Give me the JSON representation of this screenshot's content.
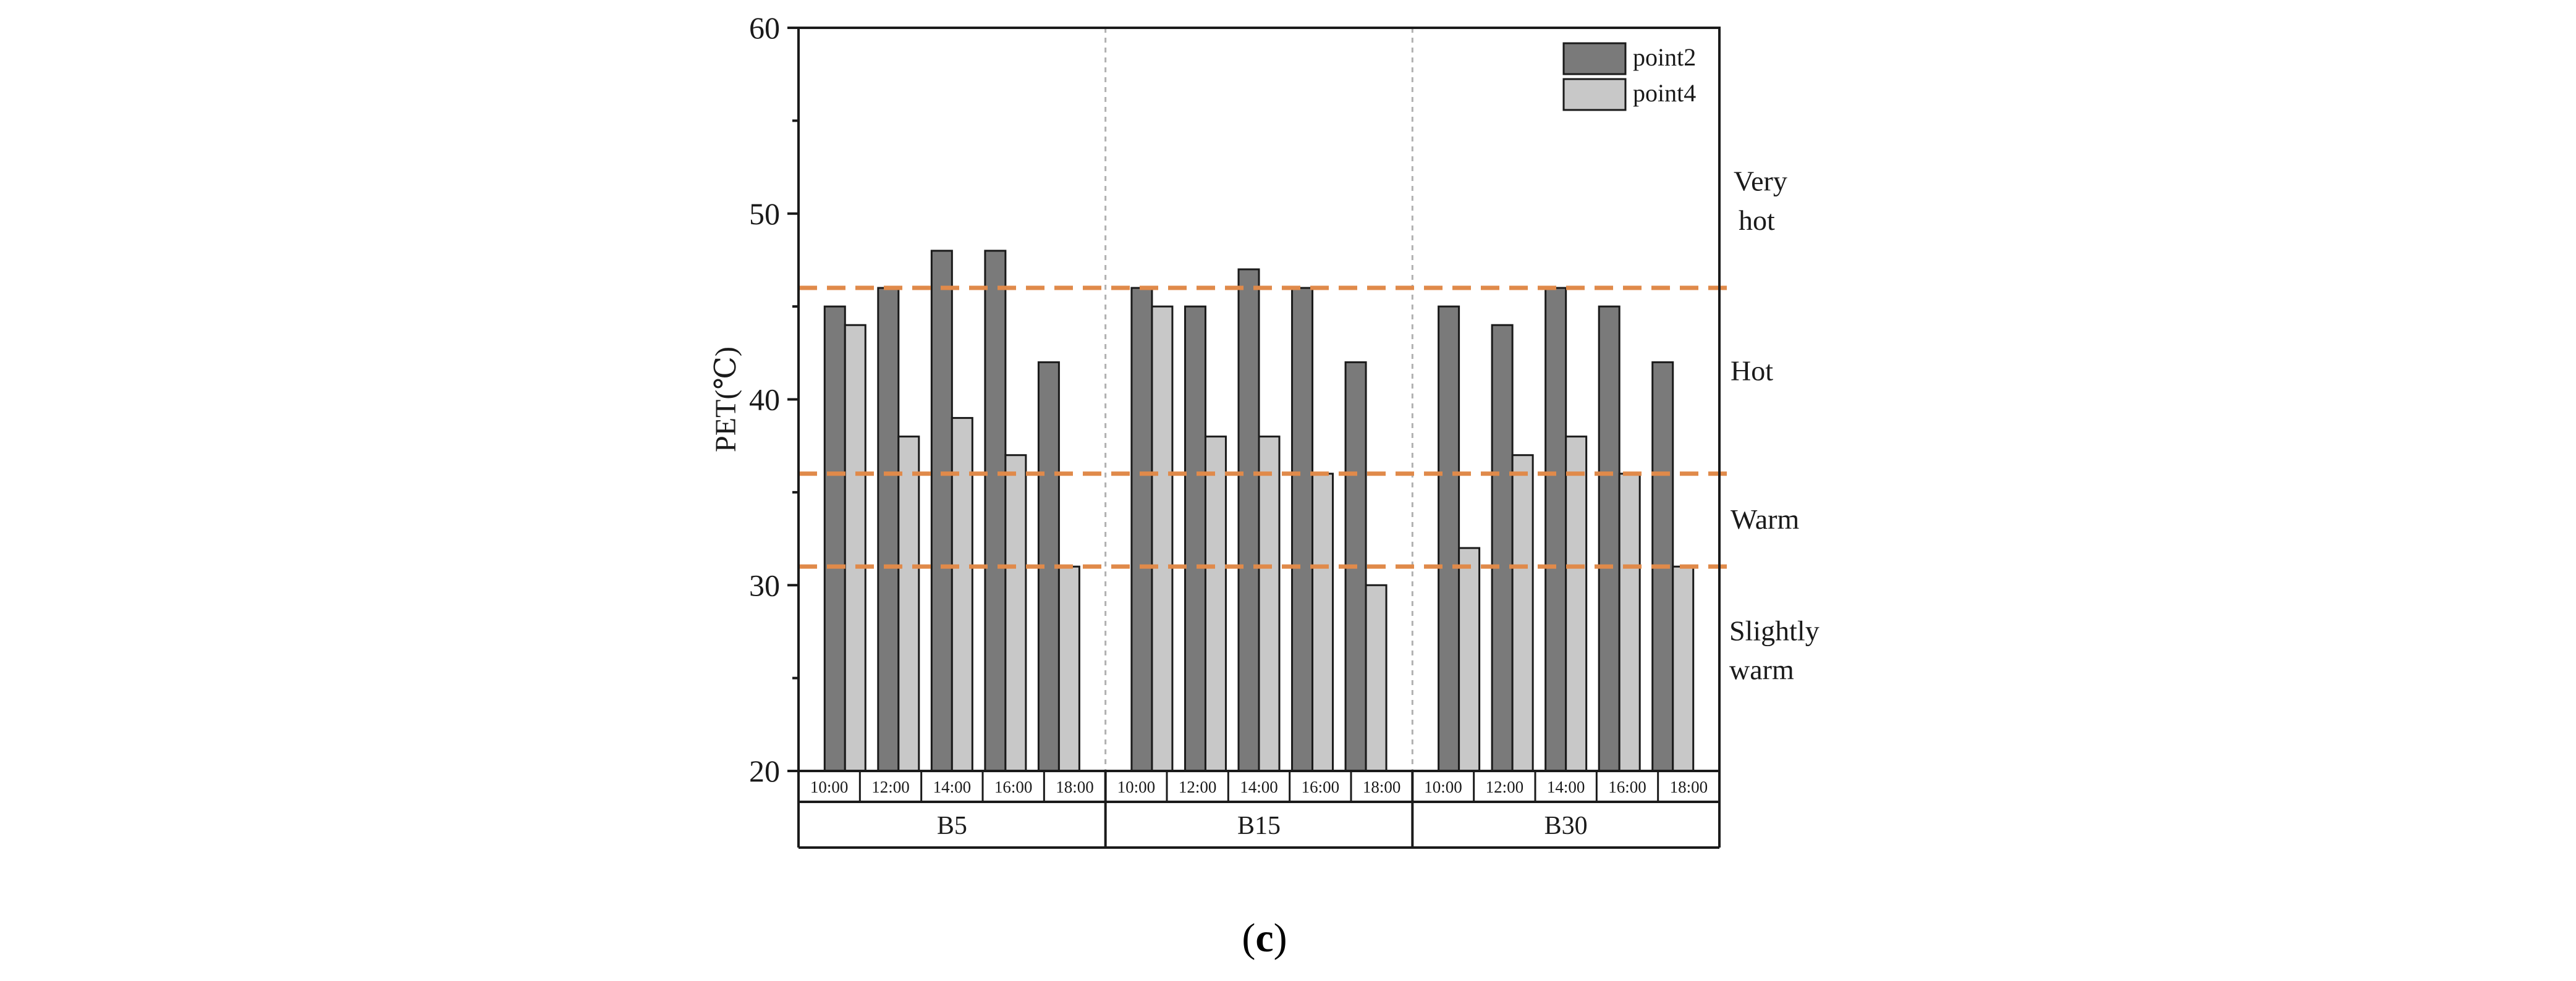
{
  "chart_data": {
    "type": "bar",
    "ylabel": "PET(℃)",
    "ylim": [
      20,
      60
    ],
    "yticks": [
      20,
      30,
      40,
      50,
      60
    ],
    "groups": [
      "B5",
      "B15",
      "B30"
    ],
    "times": [
      "10:00",
      "12:00",
      "14:00",
      "16:00",
      "18:00"
    ],
    "series": [
      {
        "name": "point2",
        "color": "#7a7a7a",
        "values": [
          [
            45,
            46,
            48,
            48,
            42
          ],
          [
            46,
            45,
            47,
            46,
            42
          ],
          [
            45,
            44,
            46,
            45,
            42
          ]
        ]
      },
      {
        "name": "point4",
        "color": "#c8c8c8",
        "values": [
          [
            44,
            38,
            39,
            37,
            31
          ],
          [
            45,
            38,
            38,
            36,
            30
          ],
          [
            32,
            37,
            38,
            36,
            31
          ]
        ]
      }
    ],
    "thresholds": [
      46,
      36,
      31
    ],
    "threshold_color": "#e08a4a",
    "zones": [
      {
        "label_lines": [
          "Very",
          "hot"
        ]
      },
      {
        "label_lines": [
          "Hot"
        ]
      },
      {
        "label_lines": [
          "Warm"
        ]
      },
      {
        "label_lines": [
          "Slightly",
          "warm"
        ]
      }
    ],
    "legend_position": "top-right"
  },
  "caption": {
    "open": "(",
    "letter": "c",
    "close": ")"
  }
}
